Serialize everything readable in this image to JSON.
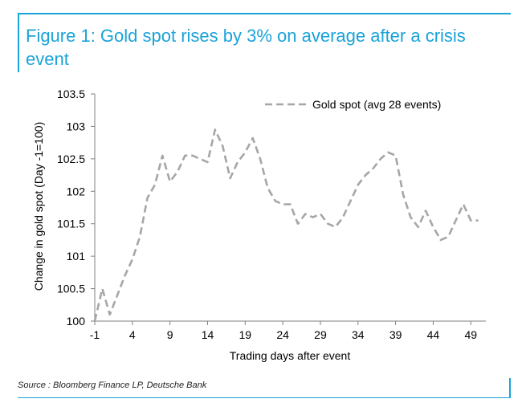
{
  "chart_data": {
    "type": "line",
    "title": "Figure 1: Gold spot rises by 3% on average after a crisis event",
    "xlabel": "Trading days after event",
    "ylabel": "Change in gold spot (Day -1=100)",
    "xlim": [
      -1,
      51
    ],
    "ylim": [
      100,
      103.5
    ],
    "x_ticks": [
      -1,
      4,
      9,
      14,
      19,
      24,
      29,
      34,
      39,
      44,
      49
    ],
    "y_ticks": [
      100,
      100.5,
      101,
      101.5,
      102,
      102.5,
      103,
      103.5
    ],
    "y_tick_labels": [
      "100",
      "100.5",
      "101",
      "101.5",
      "102",
      "102.5",
      "103",
      "103.5"
    ],
    "legend_position": "top-right",
    "series": [
      {
        "name": "Gold spot (avg 28 events)",
        "style": "dashed",
        "color": "#a6a6a6",
        "x": [
          -1,
          0,
          1,
          2,
          3,
          4,
          5,
          6,
          7,
          8,
          9,
          10,
          11,
          12,
          13,
          14,
          15,
          16,
          17,
          18,
          19,
          20,
          21,
          22,
          23,
          24,
          25,
          26,
          27,
          28,
          29,
          30,
          31,
          32,
          33,
          34,
          35,
          36,
          37,
          38,
          39,
          40,
          41,
          42,
          43,
          44,
          45,
          46,
          47,
          48,
          49,
          50
        ],
        "values": [
          100.0,
          100.5,
          100.1,
          100.4,
          100.7,
          100.95,
          101.3,
          101.9,
          102.1,
          102.55,
          102.15,
          102.3,
          102.55,
          102.55,
          102.5,
          102.45,
          102.95,
          102.7,
          102.2,
          102.45,
          102.6,
          102.82,
          102.5,
          102.05,
          101.85,
          101.8,
          101.8,
          101.5,
          101.65,
          101.6,
          101.65,
          101.5,
          101.45,
          101.6,
          101.85,
          102.1,
          102.25,
          102.35,
          102.5,
          102.6,
          102.55,
          101.95,
          101.6,
          101.45,
          101.7,
          101.45,
          101.25,
          101.3,
          101.55,
          101.8,
          101.55,
          101.55
        ]
      }
    ]
  },
  "source": "Source : Bloomberg Finance LP, Deutsche Bank"
}
